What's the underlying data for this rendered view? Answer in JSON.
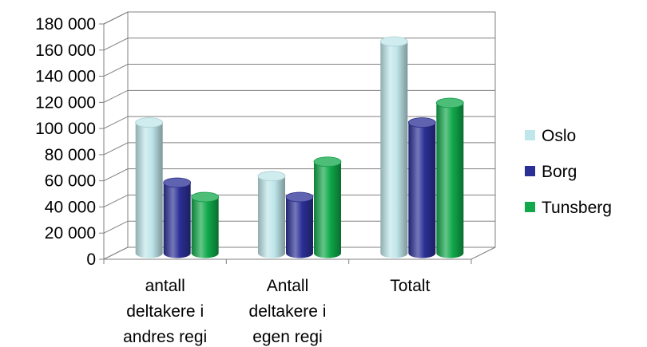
{
  "chart_data": {
    "type": "bar",
    "categories": [
      [
        "antall",
        "deltakere i",
        "andres regi"
      ],
      [
        "Antall",
        "deltakere i",
        "egen regi"
      ],
      [
        "Totalt"
      ]
    ],
    "series": [
      {
        "name": "Oslo",
        "values": [
          100000,
          59000,
          162000
        ],
        "color": "#bfe6ea"
      },
      {
        "name": "Borg",
        "values": [
          54000,
          43000,
          100000
        ],
        "color": "#2b2f95"
      },
      {
        "name": "Tunsberg",
        "values": [
          43000,
          70000,
          115000
        ],
        "color": "#10a84a"
      }
    ],
    "ylim": [
      0,
      180000
    ],
    "yticks": [
      "0",
      "20 000",
      "40 000",
      "60 000",
      "80 000",
      "100 000",
      "120 000",
      "140 000",
      "160 000",
      "180 000"
    ],
    "grid": true,
    "legend": "right",
    "title": "",
    "xlabel": "",
    "ylabel": ""
  }
}
